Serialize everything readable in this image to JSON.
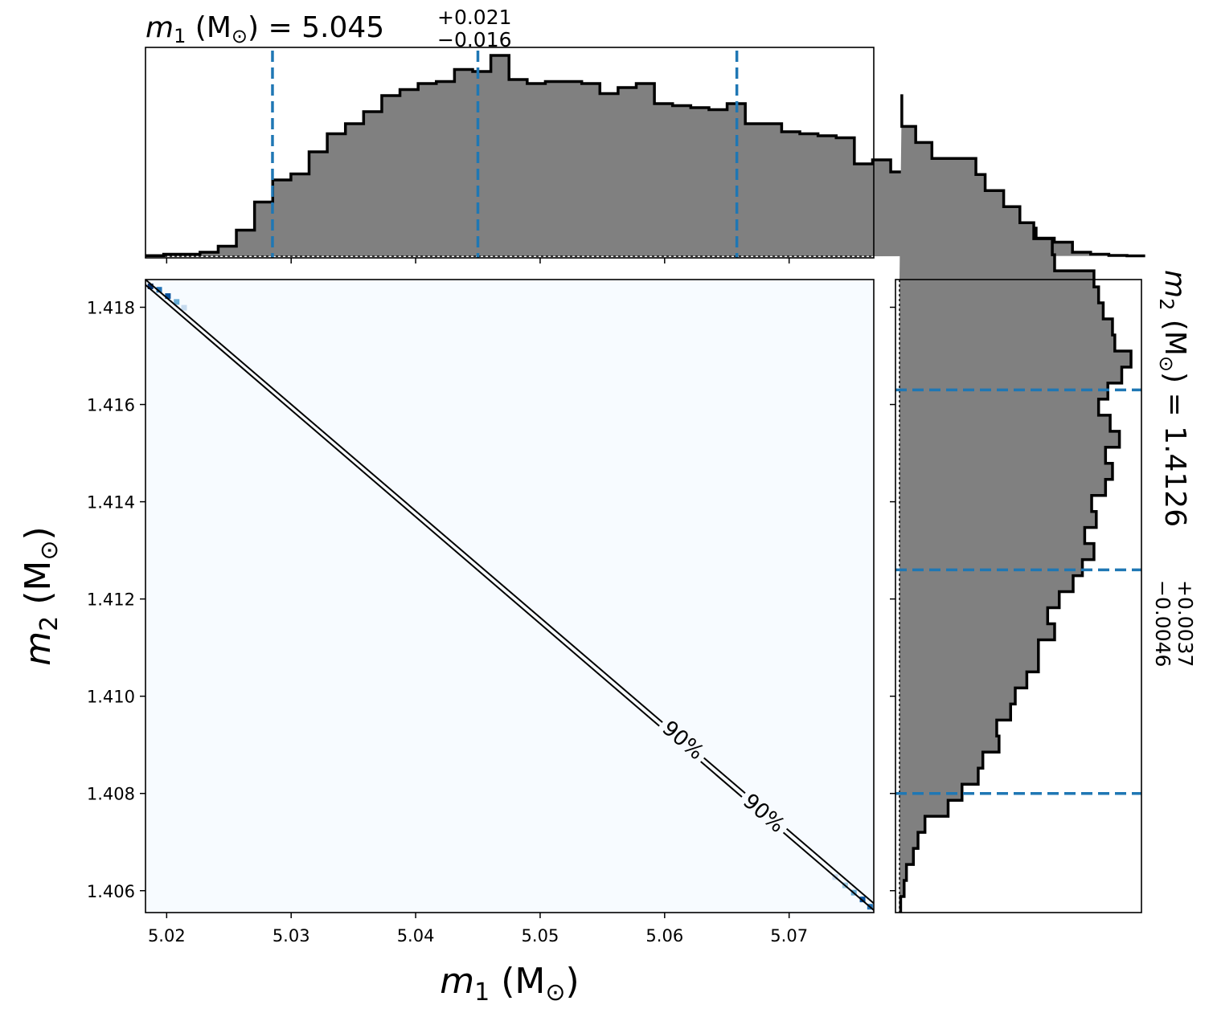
{
  "chart_data": {
    "type": "corner",
    "panels": {
      "m1_marginal": {
        "type": "histogram",
        "title": {
          "prefix": "m",
          "sub": "1",
          "unit": " (M",
          "sun": "⊙",
          "close": ")",
          "eq": " = ",
          "median": "5.045",
          "plus": "+0.021",
          "minus": "−0.016"
        },
        "xlim": [
          5.0183,
          5.0768
        ],
        "bin_edges_start": 5.0183,
        "bin_width": 0.00146,
        "counts": [
          0.003,
          0.01,
          0.01,
          0.02,
          0.05,
          0.13,
          0.27,
          0.38,
          0.41,
          0.52,
          0.61,
          0.66,
          0.72,
          0.8,
          0.83,
          0.86,
          0.87,
          0.93,
          0.92,
          1.0,
          0.88,
          0.86,
          0.87,
          0.87,
          0.86,
          0.81,
          0.84,
          0.86,
          0.76,
          0.75,
          0.74,
          0.73,
          0.76,
          0.66,
          0.66,
          0.62,
          0.61,
          0.6,
          0.59,
          0.46,
          0.48,
          0.42,
          0.4,
          0.4,
          0.37,
          0.34,
          0.26,
          0.2,
          0.14,
          0.09,
          0.07,
          0.02,
          0.01,
          0.004,
          0.002
        ],
        "quantiles": [
          5.0285,
          5.045,
          5.0658
        ],
        "quantile_color": "#1f77b4",
        "fill_color": "#808080"
      },
      "joint": {
        "type": "heatmap",
        "xlim": [
          5.0183,
          5.0768
        ],
        "ylim": [
          1.40555,
          1.41857
        ],
        "background_color": "#f7fbff",
        "contour_label": "90%",
        "contour_line_1": {
          "x": [
            5.0183,
            5.0768
          ],
          "y": [
            1.41846,
            1.4056
          ]
        },
        "contour_line_2": {
          "x": [
            5.0183,
            5.0768
          ],
          "y": [
            1.41857,
            1.40574
          ]
        },
        "contour_labels_at": [
          {
            "x": 5.0615,
            "y": 1.4091
          },
          {
            "x": 5.068,
            "y": 1.4076
          }
        ],
        "hot_cells": [
          {
            "x": 5.0187,
            "y": 1.41843,
            "color": "#08306b"
          },
          {
            "x": 5.0194,
            "y": 1.41836,
            "color": "#2171b5"
          },
          {
            "x": 5.0201,
            "y": 1.41823,
            "color": "#08519c"
          },
          {
            "x": 5.0208,
            "y": 1.41811,
            "color": "#6baed6"
          },
          {
            "x": 5.0214,
            "y": 1.41799,
            "color": "#c6dbef"
          },
          {
            "x": 5.0737,
            "y": 1.40628,
            "color": "#c6dbef"
          },
          {
            "x": 5.0745,
            "y": 1.40611,
            "color": "#9ecae1"
          },
          {
            "x": 5.0752,
            "y": 1.40596,
            "color": "#6baed6"
          },
          {
            "x": 5.0759,
            "y": 1.40582,
            "color": "#08519c"
          },
          {
            "x": 5.0765,
            "y": 1.40567,
            "color": "#2171b5"
          }
        ],
        "xticks": [
          5.02,
          5.03,
          5.04,
          5.05,
          5.06,
          5.07
        ],
        "xtick_labels": [
          "5.02",
          "5.03",
          "5.04",
          "5.05",
          "5.06",
          "5.07"
        ],
        "yticks": [
          1.406,
          1.408,
          1.41,
          1.412,
          1.414,
          1.416,
          1.418
        ],
        "ytick_labels": [
          "1.406",
          "1.408",
          "1.410",
          "1.412",
          "1.414",
          "1.416",
          "1.418"
        ],
        "xlabel": {
          "prefix": "m",
          "sub": "1",
          "unit": " (M",
          "sun": "⊙",
          "close": ")"
        },
        "ylabel": {
          "prefix": "m",
          "sub": "2",
          "unit": " (M",
          "sun": "⊙",
          "close": ")"
        }
      },
      "m2_marginal": {
        "type": "histogram",
        "orientation": "horizontal",
        "title": {
          "prefix": "m",
          "sub": "2",
          "unit": " (M",
          "sun": "⊙",
          "close": ")",
          "eq": " = ",
          "median": "1.4126",
          "plus": "+0.0037",
          "minus": "−0.0046"
        },
        "ylim": [
          1.40555,
          1.41857
        ],
        "bin_edges_start": 1.40555,
        "bin_width": 0.00033,
        "counts": [
          0.005,
          0.02,
          0.03,
          0.06,
          0.08,
          0.11,
          0.21,
          0.27,
          0.34,
          0.36,
          0.43,
          0.42,
          0.48,
          0.5,
          0.55,
          0.6,
          0.6,
          0.67,
          0.64,
          0.69,
          0.75,
          0.79,
          0.84,
          0.8,
          0.85,
          0.83,
          0.89,
          0.92,
          0.89,
          0.95,
          0.91,
          0.86,
          0.9,
          0.96,
          1.0,
          0.93,
          0.92,
          0.88,
          0.86,
          0.84,
          0.67,
          0.66,
          0.58,
          0.52,
          0.45,
          0.37,
          0.33,
          0.14,
          0.07,
          0.01,
          0.01
        ],
        "quantiles": [
          1.408,
          1.4126,
          1.4163
        ],
        "quantile_color": "#1f77b4",
        "fill_color": "#808080"
      }
    }
  }
}
